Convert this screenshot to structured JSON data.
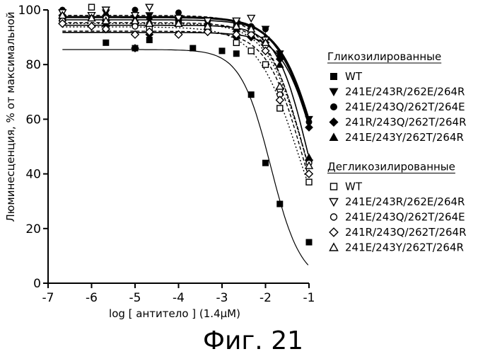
{
  "chart_data": {
    "type": "scatter",
    "xlabel": "log [ антитело ] (1.4μM)",
    "ylabel": "Люминесценция, % от максимальной",
    "xlim": [
      -7,
      -1
    ],
    "ylim": [
      0,
      100
    ],
    "xticks": [
      "-7",
      "-6",
      "-5",
      "-4",
      "-3",
      "-2",
      "-1"
    ],
    "yticks": [
      "0",
      "20",
      "40",
      "60",
      "80",
      "100"
    ],
    "legend_position": "right",
    "caption": "Фиг. 21",
    "groups": [
      {
        "heading": "Гликозилированные",
        "series": [
          {
            "name": "WT",
            "marker": "square-filled",
            "line": "solid-thin",
            "x": [
              -6.67,
              -5.67,
              -5.0,
              -4.67,
              -3.67,
              -3.0,
              -2.67,
              -2.33,
              -2.0,
              -1.67,
              -1.0
            ],
            "y": [
              97,
              88,
              86,
              89,
              86,
              85,
              84,
              69,
              44,
              29,
              15
            ]
          },
          {
            "name": "241E/243R/262E/264R",
            "marker": "triangle-down-filled",
            "line": "solid",
            "x": [
              -6.67,
              -5.67,
              -5.0,
              -4.67,
              -4.0,
              -3.33,
              -2.67,
              -2.33,
              -2.0,
              -1.67,
              -1.0
            ],
            "y": [
              99,
              99,
              97,
              98,
              96,
              94,
              95,
              93,
              93,
              84,
              60
            ]
          },
          {
            "name": "241E/243Q/262T/264E",
            "marker": "circle-filled",
            "line": "solid-bold",
            "x": [
              -6.67,
              -5.67,
              -5.0,
              -4.67,
              -4.0,
              -3.33,
              -2.67,
              -2.33,
              -2.0,
              -1.67,
              -1.0
            ],
            "y": [
              100,
              98,
              100,
              97,
              99,
              96,
              95,
              94,
              93,
              83,
              59
            ]
          },
          {
            "name": "241R/243Q/262T/264R",
            "marker": "diamond-filled",
            "line": "solid",
            "x": [
              -6.67,
              -5.67,
              -5.0,
              -4.67,
              -4.0,
              -3.33,
              -2.67,
              -2.33,
              -2.0,
              -1.67,
              -1.0
            ],
            "y": [
              98,
              96,
              86,
              91,
              91,
              92,
              90,
              90,
              88,
              82,
              57
            ]
          },
          {
            "name": "241E/243Y/262T/264R",
            "marker": "triangle-up-filled",
            "line": "solid",
            "x": [
              -6.67,
              -5.67,
              -5.0,
              -4.67,
              -4.0,
              -3.33,
              -2.67,
              -2.33,
              -2.0,
              -1.67,
              -1.0
            ],
            "y": [
              97,
              95,
              96,
              95,
              95,
              93,
              93,
              91,
              90,
              80,
              46
            ]
          }
        ]
      },
      {
        "heading": "Дегликозилированные",
        "series": [
          {
            "name": "WT",
            "marker": "square-open",
            "line": "dotted",
            "x": [
              -6.67,
              -6.0,
              -5.67,
              -5.0,
              -4.67,
              -4.0,
              -3.33,
              -2.67,
              -2.33,
              -2.0,
              -1.67,
              -1.0
            ],
            "y": [
              97,
              101,
              96,
              95,
              93,
              95,
              94,
              88,
              85,
              80,
              64,
              37
            ]
          },
          {
            "name": "241E/243R/262E/264R",
            "marker": "triangle-down-open",
            "line": "dashed",
            "x": [
              -6.67,
              -6.0,
              -5.67,
              -5.0,
              -4.67,
              -4.0,
              -3.33,
              -2.67,
              -2.33,
              -2.0,
              -1.67,
              -1.0
            ],
            "y": [
              99,
              98,
              100,
              98,
              101,
              97,
              96,
              96,
              97,
              89,
              70,
              44
            ]
          },
          {
            "name": "241E/243Q/262T/264E",
            "marker": "circle-open",
            "line": "dotted",
            "x": [
              -6.67,
              -6.0,
              -5.67,
              -5.0,
              -4.67,
              -4.0,
              -3.33,
              -2.67,
              -2.33,
              -2.0,
              -1.67,
              -1.0
            ],
            "y": [
              96,
              97,
              97,
              94,
              95,
              95,
              94,
              94,
              93,
              87,
              69,
              44
            ]
          },
          {
            "name": "241R/243Q/262T/264R",
            "marker": "diamond-open",
            "line": "dashed",
            "x": [
              -6.67,
              -6.0,
              -5.67,
              -5.0,
              -4.67,
              -4.0,
              -3.33,
              -2.67,
              -2.33,
              -2.0,
              -1.67,
              -1.0
            ],
            "y": [
              95,
              94,
              93,
              91,
              92,
              91,
              92,
              91,
              91,
              85,
              67,
              40
            ]
          },
          {
            "name": "241E/243Y/262T/264R",
            "marker": "triangle-up-open",
            "line": "dashed",
            "x": [
              -6.67,
              -6.0,
              -5.67,
              -5.0,
              -4.67,
              -4.0,
              -3.33,
              -2.67,
              -2.33,
              -2.0,
              -1.67,
              -1.0
            ],
            "y": [
              98,
              97,
              96,
              96,
              95,
              95,
              94,
              94,
              93,
              88,
              72,
              43
            ]
          }
        ]
      }
    ]
  }
}
